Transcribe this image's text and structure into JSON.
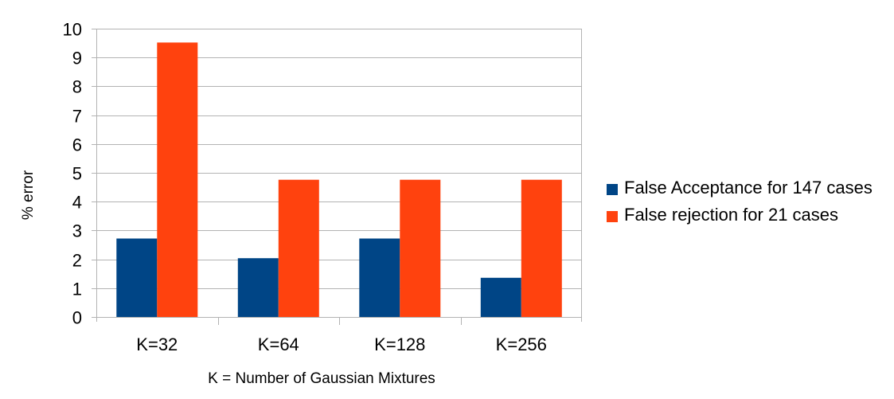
{
  "chart_data": {
    "type": "bar",
    "title": "",
    "xlabel": "K = Number of Gaussian Mixtures",
    "ylabel": "% error",
    "categories": [
      "K=32",
      "K=64",
      "K=128",
      "K=256"
    ],
    "series": [
      {
        "name": "False Acceptance for 147 cases",
        "values": [
          2.72,
          2.04,
          2.72,
          1.36
        ],
        "color": "#004586"
      },
      {
        "name": "False rejection for 21 cases",
        "values": [
          9.52,
          4.76,
          4.76,
          4.76
        ],
        "color": "#ff420e"
      }
    ],
    "ylim": [
      0,
      10
    ],
    "yticks": [
      0,
      1,
      2,
      3,
      4,
      5,
      6,
      7,
      8,
      9,
      10
    ],
    "grid": true,
    "legend_position": "right"
  }
}
